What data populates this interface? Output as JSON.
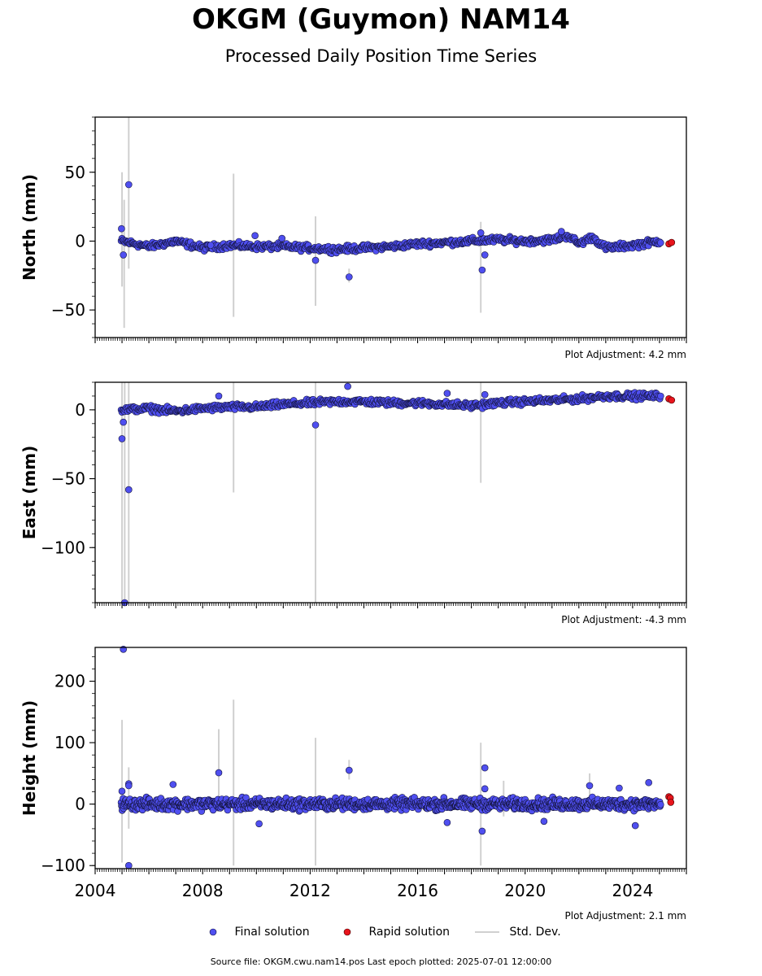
{
  "header": {
    "title": "OKGM (Guymon) NAM14",
    "subtitle": "Processed Daily Position Time Series"
  },
  "colors": {
    "final": "#4f4ff0",
    "rapid": "#e8141c",
    "std": "#d0d0d0"
  },
  "chart_data": [
    {
      "type": "scatter",
      "component": "north",
      "ylabel": "North (mm)",
      "xlim": [
        2004,
        2026
      ],
      "ylim": [
        -70,
        90
      ],
      "yticks": [
        -50,
        0,
        50
      ],
      "plot_adjustment": "Plot Adjustment: 4.2 mm",
      "trend": [
        [
          2005.0,
          0
        ],
        [
          2006.0,
          -4
        ],
        [
          2007.0,
          0
        ],
        [
          2008.0,
          -5
        ],
        [
          2009.0,
          -3
        ],
        [
          2010.0,
          -4
        ],
        [
          2011.0,
          -4
        ],
        [
          2012.0,
          -5
        ],
        [
          2013.0,
          -6
        ],
        [
          2014.0,
          -5
        ],
        [
          2015.0,
          -4
        ],
        [
          2016.0,
          -2
        ],
        [
          2017.0,
          -1
        ],
        [
          2018.0,
          0
        ],
        [
          2019.0,
          1
        ],
        [
          2020.0,
          0
        ],
        [
          2021.0,
          1
        ],
        [
          2021.6,
          4
        ],
        [
          2022.0,
          -2
        ],
        [
          2022.5,
          3
        ],
        [
          2023.0,
          -5
        ],
        [
          2024.0,
          -3
        ],
        [
          2025.0,
          0
        ]
      ],
      "outliers": [
        [
          2004.98,
          9
        ],
        [
          2005.05,
          -10
        ],
        [
          2005.25,
          41
        ],
        [
          2008.3,
          -3
        ],
        [
          2009.95,
          4
        ],
        [
          2010.95,
          2
        ],
        [
          2012.2,
          -14
        ],
        [
          2013.45,
          -26
        ],
        [
          2018.4,
          -21
        ],
        [
          2018.5,
          -10
        ],
        [
          2018.35,
          6
        ],
        [
          2021.35,
          7
        ]
      ],
      "rapid": [
        [
          2025.35,
          -2
        ],
        [
          2025.45,
          -1
        ]
      ],
      "std_dev": [
        [
          2005.0,
          50,
          -33
        ],
        [
          2005.08,
          30,
          -63
        ],
        [
          2005.25,
          90,
          -20
        ],
        [
          2009.15,
          49,
          -55
        ],
        [
          2012.2,
          18,
          -47
        ],
        [
          2013.45,
          -20,
          -30
        ],
        [
          2018.35,
          14,
          -52
        ]
      ]
    },
    {
      "type": "scatter",
      "component": "east",
      "ylabel": "East (mm)",
      "xlim": [
        2004,
        2026
      ],
      "ylim": [
        -140,
        20
      ],
      "yticks": [
        -100,
        -50,
        0
      ],
      "plot_adjustment": "Plot Adjustment: -4.3 mm",
      "trend": [
        [
          2005.0,
          0
        ],
        [
          2006.0,
          1
        ],
        [
          2007.0,
          -1
        ],
        [
          2008.0,
          1
        ],
        [
          2009.0,
          2
        ],
        [
          2010.0,
          2
        ],
        [
          2011.0,
          4
        ],
        [
          2012.0,
          5
        ],
        [
          2013.0,
          6
        ],
        [
          2014.0,
          6
        ],
        [
          2015.0,
          5
        ],
        [
          2016.0,
          5
        ],
        [
          2017.0,
          4
        ],
        [
          2018.0,
          3
        ],
        [
          2019.0,
          5
        ],
        [
          2020.0,
          6
        ],
        [
          2021.0,
          7
        ],
        [
          2022.0,
          8
        ],
        [
          2023.0,
          10
        ],
        [
          2024.0,
          10
        ],
        [
          2025.0,
          10
        ]
      ],
      "outliers": [
        [
          2005.0,
          -21
        ],
        [
          2005.05,
          -9
        ],
        [
          2005.1,
          -140
        ],
        [
          2005.25,
          -58
        ],
        [
          2008.6,
          10
        ],
        [
          2012.2,
          -11
        ],
        [
          2013.4,
          17
        ],
        [
          2017.1,
          12
        ],
        [
          2018.5,
          11
        ]
      ],
      "rapid": [
        [
          2025.35,
          8
        ],
        [
          2025.45,
          7
        ]
      ],
      "std_dev": [
        [
          2005.0,
          20,
          -140
        ],
        [
          2005.1,
          20,
          -140
        ],
        [
          2005.25,
          20,
          -140
        ],
        [
          2009.15,
          20,
          -60
        ],
        [
          2012.2,
          20,
          -140
        ],
        [
          2018.35,
          20,
          -53
        ]
      ]
    },
    {
      "type": "scatter",
      "component": "height",
      "ylabel": "Height (mm)",
      "xlim": [
        2004,
        2026
      ],
      "ylim": [
        -105,
        255
      ],
      "yticks": [
        -100,
        0,
        100,
        200
      ],
      "xticks": [
        2004,
        2008,
        2012,
        2016,
        2020,
        2024
      ],
      "plot_adjustment": "Plot Adjustment: 2.1 mm",
      "trend": [
        [
          2005.0,
          0
        ],
        [
          2007.0,
          0
        ],
        [
          2010.0,
          0
        ],
        [
          2013.0,
          0
        ],
        [
          2016.0,
          0
        ],
        [
          2019.0,
          0
        ],
        [
          2022.0,
          0
        ],
        [
          2025.0,
          0
        ]
      ],
      "outliers": [
        [
          2005.05,
          252
        ],
        [
          2005.0,
          21
        ],
        [
          2005.25,
          33
        ],
        [
          2005.25,
          30
        ],
        [
          2005.25,
          -100
        ],
        [
          2006.9,
          32
        ],
        [
          2008.6,
          51
        ],
        [
          2010.1,
          -32
        ],
        [
          2013.45,
          55
        ],
        [
          2017.1,
          -30
        ],
        [
          2018.4,
          -44
        ],
        [
          2018.5,
          59
        ],
        [
          2018.5,
          25
        ],
        [
          2020.7,
          -28
        ],
        [
          2022.4,
          30
        ],
        [
          2023.5,
          26
        ],
        [
          2024.6,
          35
        ],
        [
          2024.1,
          -35
        ]
      ],
      "rapid": [
        [
          2025.35,
          12
        ],
        [
          2025.4,
          10
        ],
        [
          2025.42,
          3
        ]
      ],
      "std_dev": [
        [
          2005.0,
          137,
          -95
        ],
        [
          2005.25,
          60,
          -40
        ],
        [
          2008.6,
          122,
          10
        ],
        [
          2009.15,
          170,
          -100
        ],
        [
          2012.2,
          108,
          -100
        ],
        [
          2013.45,
          72,
          40
        ],
        [
          2018.35,
          100,
          -100
        ],
        [
          2019.2,
          38,
          -20
        ],
        [
          2022.4,
          50,
          10
        ]
      ]
    }
  ],
  "legend": {
    "final": "Final solution",
    "rapid": "Rapid solution",
    "std": "Std. Dev."
  },
  "footer": {
    "source": "Source file: OKGM.cwu.nam14.pos  Last epoch plotted: 2025-07-01 12:00:00"
  }
}
